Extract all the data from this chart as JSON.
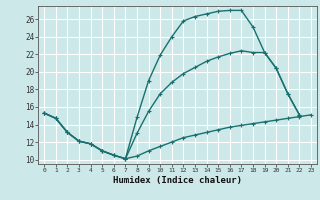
{
  "xlabel": "Humidex (Indice chaleur)",
  "bg_color": "#cce8e8",
  "grid_color": "#ffffff",
  "line_color": "#1a7070",
  "xlim": [
    -0.5,
    23.5
  ],
  "ylim": [
    9.5,
    27.5
  ],
  "xticks": [
    0,
    1,
    2,
    3,
    4,
    5,
    6,
    7,
    8,
    9,
    10,
    11,
    12,
    13,
    14,
    15,
    16,
    17,
    18,
    19,
    20,
    21,
    22,
    23
  ],
  "yticks": [
    10,
    12,
    14,
    16,
    18,
    20,
    22,
    24,
    26
  ],
  "line1_x": [
    0,
    1,
    2,
    3,
    4,
    5,
    6,
    7,
    8,
    9,
    10,
    11,
    12,
    13,
    14,
    15,
    16,
    17,
    18,
    19,
    20,
    21,
    22,
    23
  ],
  "line1_y": [
    15.3,
    14.7,
    13.1,
    12.1,
    11.8,
    11.0,
    10.5,
    10.1,
    10.4,
    11.0,
    11.5,
    12.0,
    12.5,
    12.8,
    13.1,
    13.4,
    13.7,
    13.9,
    14.1,
    14.3,
    14.5,
    14.7,
    14.9,
    15.1
  ],
  "line2_x": [
    0,
    1,
    2,
    3,
    4,
    5,
    6,
    7,
    8,
    9,
    10,
    11,
    12,
    13,
    14,
    15,
    16,
    17,
    18,
    19,
    20,
    21,
    22,
    23
  ],
  "line2_y": [
    15.3,
    14.7,
    13.1,
    12.1,
    11.8,
    11.0,
    10.5,
    10.1,
    14.8,
    19.0,
    21.9,
    24.0,
    25.8,
    26.3,
    26.6,
    26.9,
    27.0,
    27.0,
    25.1,
    22.2,
    20.4,
    17.5,
    15.1,
    null
  ],
  "line3_x": [
    0,
    1,
    2,
    3,
    4,
    5,
    6,
    7,
    8,
    9,
    10,
    11,
    12,
    13,
    14,
    15,
    16,
    17,
    18,
    19,
    20,
    21,
    22,
    23
  ],
  "line3_y": [
    15.3,
    14.7,
    13.1,
    12.1,
    11.8,
    11.0,
    10.5,
    10.1,
    13.0,
    15.5,
    17.5,
    18.8,
    19.8,
    20.5,
    21.2,
    21.7,
    22.1,
    22.4,
    22.2,
    22.2,
    20.4,
    17.5,
    15.1,
    null
  ]
}
